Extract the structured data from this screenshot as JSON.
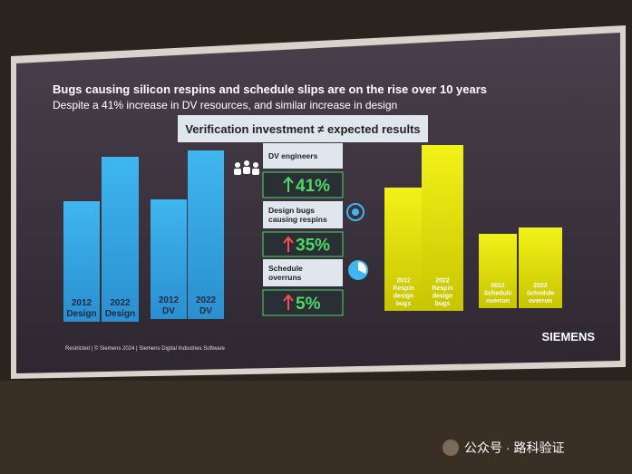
{
  "slide": {
    "title": "Bugs causing silicon respins and schedule slips are on the rise over 10 years",
    "subtitle": "Despite a 41% increase in DV resources, and similar increase in design",
    "banner": "Verification investment ≠ expected results",
    "bars": [
      {
        "label": [
          "2012",
          "Design"
        ]
      },
      {
        "label": [
          "2022",
          "Design"
        ]
      },
      {
        "label": [
          "2012",
          "DV"
        ]
      },
      {
        "label": [
          "2022",
          "DV"
        ]
      },
      {
        "label": [
          "2012",
          "Respin",
          "design",
          "bugs"
        ]
      },
      {
        "label": [
          "2022",
          "Respin",
          "design",
          "bugs"
        ]
      },
      {
        "label": [
          "2012",
          "Schedule",
          "overrun"
        ]
      },
      {
        "label": [
          "2022",
          "Schedule",
          "overrun"
        ]
      }
    ],
    "metrics": [
      {
        "name": [
          "DV engineers"
        ],
        "change": "41%"
      },
      {
        "name": [
          "Design bugs",
          "causing respins"
        ],
        "change": "35%"
      },
      {
        "name": [
          "Schedule",
          "overruns"
        ],
        "change": "5%"
      }
    ],
    "footer": "Restricted | © Siemens 2024 | Siemens Digital Industries Software",
    "logo": "SIEMENS"
  },
  "watermark": "公众号 · 路科验证"
}
